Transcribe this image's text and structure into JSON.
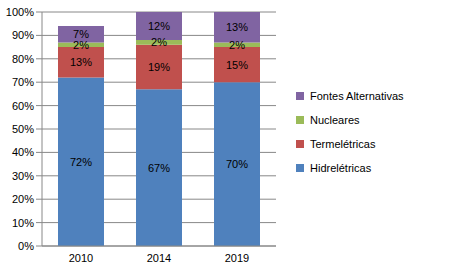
{
  "chart_data": {
    "type": "bar",
    "stacked": true,
    "data_labels": true,
    "grid": true,
    "legend": "right",
    "categories": [
      "2010",
      "2014",
      "2019"
    ],
    "ylim": [
      0,
      100
    ],
    "yticks": [
      {
        "value": 0,
        "label": "0%"
      },
      {
        "value": 10,
        "label": "10%"
      },
      {
        "value": 20,
        "label": "20%"
      },
      {
        "value": 30,
        "label": "30%"
      },
      {
        "value": 40,
        "label": "40%"
      },
      {
        "value": 50,
        "label": "50%"
      },
      {
        "value": 60,
        "label": "60%"
      },
      {
        "value": 70,
        "label": "70%"
      },
      {
        "value": 80,
        "label": "80%"
      },
      {
        "value": 90,
        "label": "90%"
      },
      {
        "value": 100,
        "label": "100%"
      }
    ],
    "series": [
      {
        "name": "Hidrelétricas",
        "color": "#4f81bd",
        "values": [
          72,
          67,
          70
        ],
        "value_labels": [
          "72%",
          "67%",
          "70%"
        ]
      },
      {
        "name": "Termelétricas",
        "color": "#c0504d",
        "values": [
          13,
          19,
          15
        ],
        "value_labels": [
          "13%",
          "19%",
          "15%"
        ]
      },
      {
        "name": "Nucleares",
        "color": "#9bbb59",
        "values": [
          2,
          2,
          2
        ],
        "value_labels": [
          "2%",
          "2%",
          "2%"
        ]
      },
      {
        "name": "Fontes Alternativas",
        "color": "#8064a2",
        "values": [
          7,
          12,
          13
        ],
        "value_labels": [
          "7%",
          "12%",
          "13%"
        ]
      }
    ]
  }
}
